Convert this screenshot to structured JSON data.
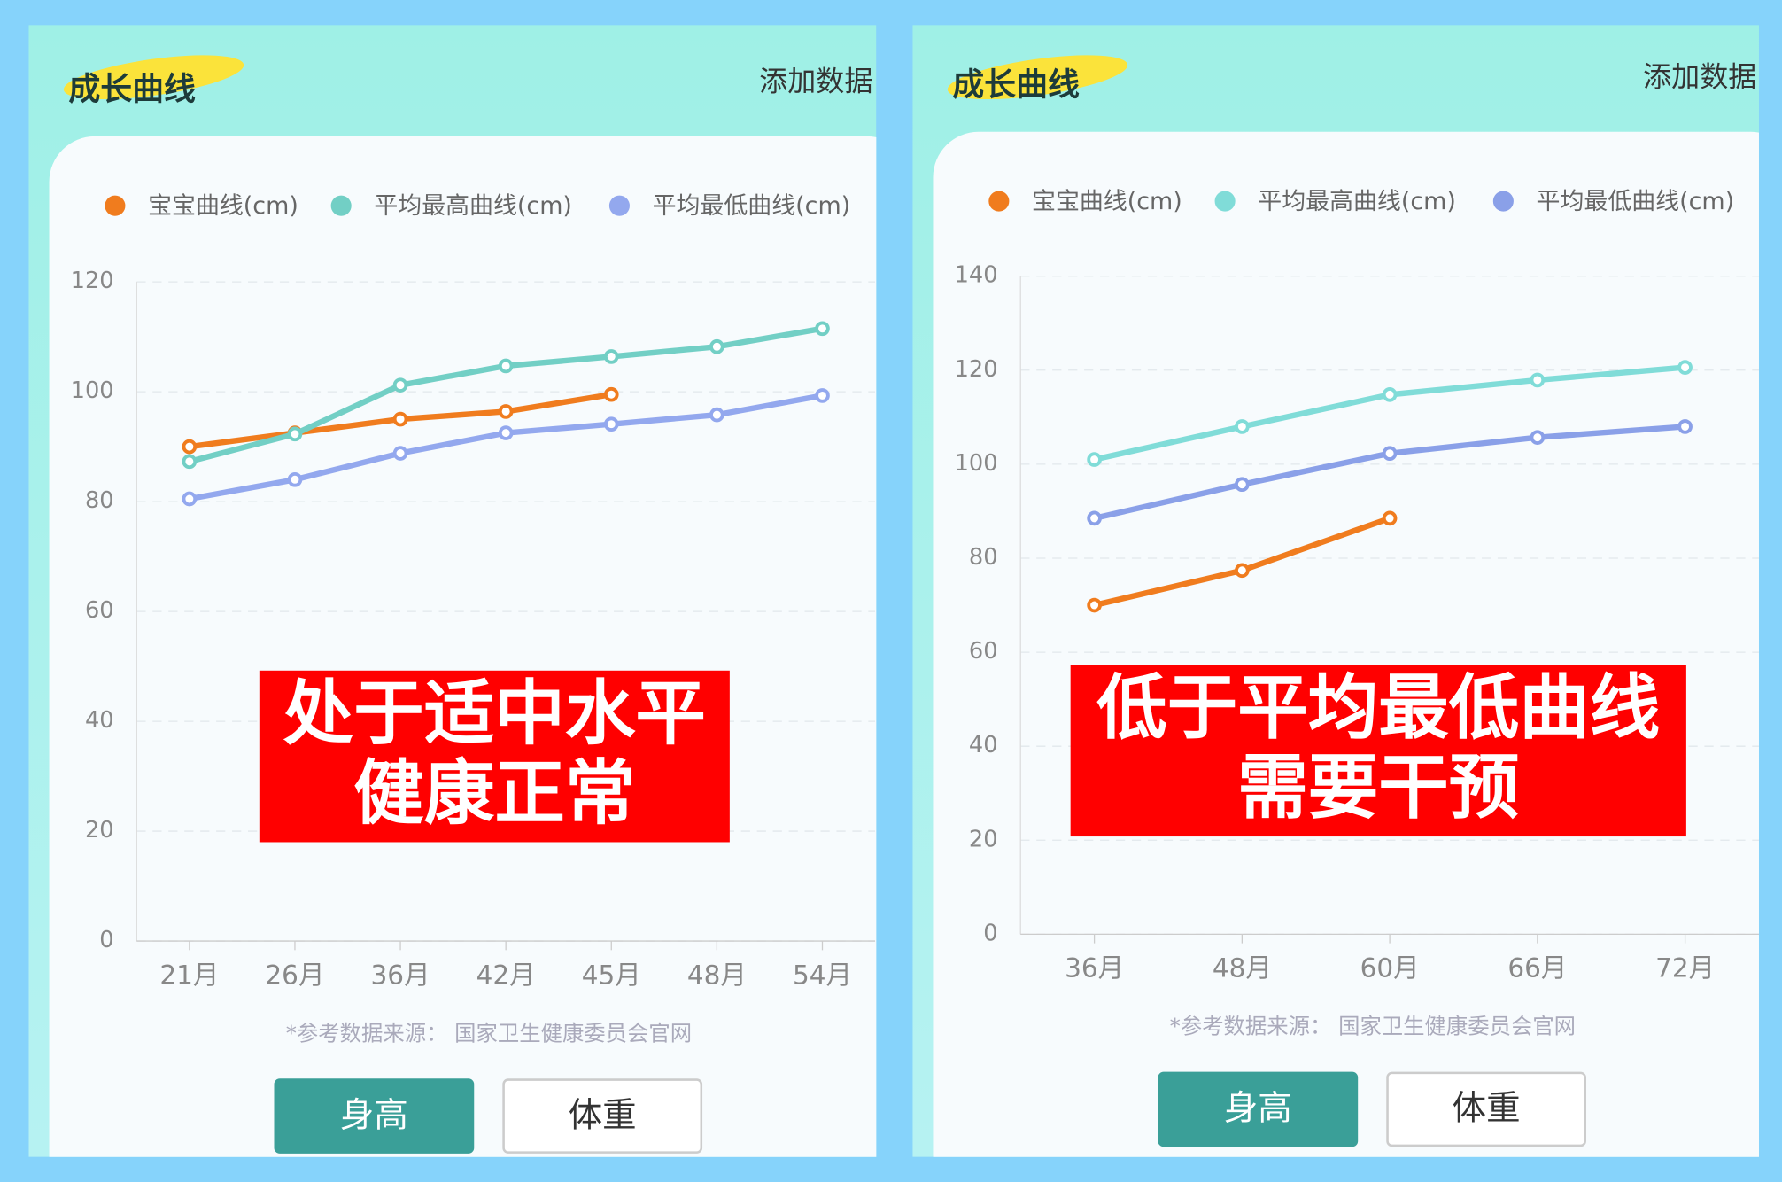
{
  "chart_data": [
    {
      "type": "line",
      "title": "成长曲线",
      "action": "添加数据",
      "categories": [
        "21月",
        "26月",
        "36月",
        "42月",
        "45月",
        "48月",
        "54月"
      ],
      "series": [
        {
          "name": "宝宝曲线(cm)",
          "color": "#f07c1e",
          "values": [
            90,
            92.5,
            95,
            96.4,
            99.5,
            null,
            null
          ]
        },
        {
          "name": "平均最高曲线(cm)",
          "color": "#72cfc5",
          "values": [
            87.3,
            92.3,
            101.2,
            104.7,
            106.4,
            108.2,
            111.5
          ]
        },
        {
          "name": "平均最低曲线(cm)",
          "color": "#93a8ee",
          "values": [
            80.5,
            84,
            88.8,
            92.5,
            94.1,
            95.8,
            99.3
          ]
        }
      ],
      "ylim": [
        0,
        120
      ],
      "yticks": [
        0,
        20,
        40,
        60,
        80,
        100,
        120
      ],
      "grid": true,
      "annotations": [
        "处于适中水平",
        "健康正常"
      ],
      "note": "*参考数据来源： 国家卫生健康委员会官网",
      "tabs": [
        "身高",
        "体重"
      ]
    },
    {
      "type": "line",
      "title": "成长曲线",
      "action": "添加数据",
      "categories": [
        "36月",
        "48月",
        "60月",
        "66月",
        "72月"
      ],
      "series": [
        {
          "name": "宝宝曲线(cm)",
          "color": "#f07c1e",
          "values": [
            70,
            77.4,
            88.5,
            null,
            null
          ]
        },
        {
          "name": "平均最高曲线(cm)",
          "color": "#80dcd8",
          "values": [
            101,
            108,
            114.8,
            117.9,
            120.6
          ]
        },
        {
          "name": "平均最低曲线(cm)",
          "color": "#8aa0e8",
          "values": [
            88.5,
            95.7,
            102.3,
            105.7,
            108
          ]
        }
      ],
      "ylim": [
        0,
        140
      ],
      "yticks": [
        0,
        20,
        40,
        60,
        80,
        100,
        120,
        140
      ],
      "grid": true,
      "annotations": [
        "低于平均最低曲线",
        "需要干预"
      ],
      "note": "*参考数据来源： 国家卫生健康委员会官网",
      "tabs": [
        "身高",
        "体重"
      ]
    }
  ]
}
